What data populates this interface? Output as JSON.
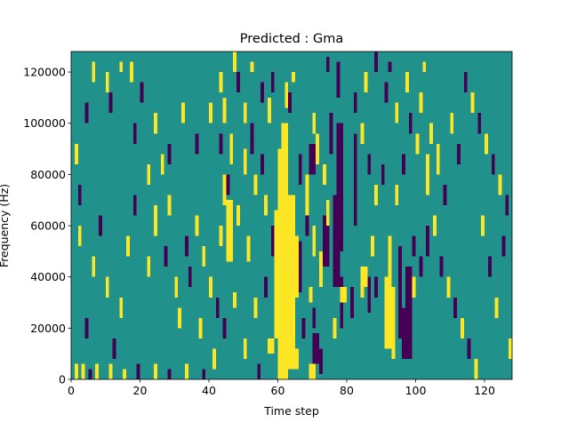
{
  "chart_data": {
    "type": "heatmap",
    "title": "Predicted : Gma",
    "xlabel": "Time step",
    "ylabel": "Frequency (Hz)",
    "xlim": [
      0,
      128
    ],
    "ylim": [
      0,
      128000
    ],
    "xticks": [
      0,
      20,
      40,
      60,
      80,
      100,
      120
    ],
    "yticks": [
      0,
      20000,
      40000,
      60000,
      80000,
      100000,
      120000
    ],
    "n_time_steps": 128,
    "n_freq_bins": 64,
    "freq_bin_hz": 2000,
    "levels": [
      -1,
      0,
      1
    ],
    "colors": {
      "-1": "#440154",
      "0": "#21918c",
      "1": "#fde725"
    },
    "cell_format": "[time_step_start, time_step_end_exclusive, freq_bin_start, freq_bin_end_exclusive, level] — time steps are on the x axis; bin k covers k*2000 to (k+1)*2000 Hz on the y axis; all unlisted cells are level 0",
    "cells": [
      [
        60,
        63,
        0,
        45,
        1
      ],
      [
        63,
        65,
        2,
        36,
        1
      ],
      [
        59,
        60,
        8,
        33,
        1
      ],
      [
        64,
        66,
        16,
        28,
        1
      ],
      [
        61,
        63,
        45,
        50,
        1
      ],
      [
        57,
        59,
        5,
        8,
        1
      ],
      [
        65,
        66,
        2,
        6,
        1
      ],
      [
        79,
        81,
        25,
        55,
        0
      ],
      [
        78,
        80,
        15,
        18,
        1
      ],
      [
        77,
        79,
        25,
        50,
        -1
      ],
      [
        76,
        78,
        18,
        36,
        -1
      ],
      [
        73,
        75,
        22,
        32,
        -1
      ],
      [
        78,
        79,
        10,
        20,
        -1
      ],
      [
        82,
        83,
        30,
        48,
        -1
      ],
      [
        77,
        78,
        55,
        62,
        -1
      ],
      [
        75,
        76,
        44,
        52,
        -1
      ],
      [
        97,
        99,
        4,
        22,
        -1
      ],
      [
        96,
        98,
        4,
        14,
        -1
      ],
      [
        95,
        96,
        8,
        26,
        -1
      ],
      [
        91,
        93,
        6,
        20,
        1
      ],
      [
        93,
        94,
        4,
        18,
        1
      ],
      [
        92,
        93,
        12,
        28,
        1
      ],
      [
        86,
        87,
        13,
        20,
        -1
      ],
      [
        84,
        85,
        16,
        20,
        1
      ],
      [
        99,
        100,
        24,
        28,
        -1
      ],
      [
        101,
        102,
        20,
        24,
        -1
      ],
      [
        99,
        100,
        16,
        20,
        1
      ],
      [
        66,
        67,
        17,
        27,
        -1
      ],
      [
        70,
        72,
        3,
        9,
        -1
      ],
      [
        72,
        73,
        1,
        6,
        -1
      ],
      [
        69,
        71,
        0,
        3,
        1
      ],
      [
        70,
        71,
        10,
        14,
        -1
      ],
      [
        67,
        68,
        8,
        12,
        -1
      ],
      [
        72,
        73,
        18,
        25,
        1
      ],
      [
        69,
        70,
        15,
        18,
        1
      ],
      [
        70,
        71,
        24,
        30,
        1
      ],
      [
        68,
        69,
        32,
        40,
        1
      ],
      [
        66,
        67,
        38,
        44,
        -1
      ],
      [
        68,
        69,
        28,
        35,
        -1
      ],
      [
        69,
        71,
        40,
        46,
        -1
      ],
      [
        71,
        72,
        42,
        48,
        1
      ],
      [
        70,
        71,
        48,
        52,
        1
      ],
      [
        73,
        74,
        38,
        42,
        1
      ],
      [
        74,
        75,
        30,
        35,
        1
      ],
      [
        76,
        77,
        8,
        12,
        1
      ],
      [
        84,
        86,
        18,
        22,
        1
      ],
      [
        87,
        88,
        24,
        28,
        1
      ],
      [
        88,
        89,
        16,
        20,
        -1
      ],
      [
        45,
        47,
        23,
        35,
        1
      ],
      [
        46,
        47,
        42,
        48,
        1
      ],
      [
        44,
        45,
        34,
        40,
        1
      ],
      [
        43,
        44,
        26,
        30,
        1
      ],
      [
        45,
        46,
        36,
        40,
        -1
      ],
      [
        47,
        48,
        14,
        17,
        1
      ],
      [
        44,
        45,
        50,
        55,
        1
      ],
      [
        48,
        49,
        30,
        34,
        1
      ],
      [
        51,
        52,
        23,
        28,
        1
      ],
      [
        53,
        54,
        36,
        40,
        1
      ],
      [
        50,
        51,
        40,
        45,
        1
      ],
      [
        52,
        53,
        44,
        50,
        -1
      ],
      [
        56,
        57,
        32,
        36,
        1
      ],
      [
        58,
        59,
        24,
        30,
        -1
      ],
      [
        55,
        56,
        40,
        44,
        -1
      ],
      [
        57,
        58,
        50,
        55,
        1
      ],
      [
        50,
        51,
        50,
        54,
        1
      ],
      [
        43,
        44,
        56,
        60,
        1
      ],
      [
        47,
        48,
        60,
        64,
        1
      ],
      [
        40,
        41,
        16,
        20,
        1
      ],
      [
        38,
        39,
        22,
        26,
        1
      ],
      [
        42,
        43,
        12,
        16,
        -1
      ],
      [
        36,
        37,
        28,
        32,
        1
      ],
      [
        33,
        34,
        24,
        28,
        -1
      ],
      [
        30,
        31,
        16,
        20,
        1
      ],
      [
        28,
        29,
        32,
        36,
        1
      ],
      [
        26,
        27,
        40,
        44,
        1
      ],
      [
        24,
        25,
        28,
        34,
        1
      ],
      [
        22,
        23,
        20,
        24,
        1
      ],
      [
        18,
        19,
        32,
        36,
        -1
      ],
      [
        16,
        17,
        24,
        28,
        1
      ],
      [
        14,
        15,
        12,
        16,
        1
      ],
      [
        12,
        13,
        4,
        8,
        -1
      ],
      [
        10,
        11,
        16,
        20,
        1
      ],
      [
        8,
        9,
        28,
        32,
        -1
      ],
      [
        6,
        7,
        20,
        24,
        1
      ],
      [
        4,
        5,
        8,
        12,
        -1
      ],
      [
        2,
        3,
        26,
        30,
        1
      ],
      [
        1,
        2,
        0,
        3,
        1
      ],
      [
        3,
        4,
        0,
        3,
        1
      ],
      [
        5,
        6,
        0,
        2,
        -1
      ],
      [
        7,
        8,
        0,
        3,
        1
      ],
      [
        11,
        12,
        0,
        3,
        1
      ],
      [
        15,
        16,
        0,
        2,
        1
      ],
      [
        19,
        20,
        0,
        3,
        -1
      ],
      [
        24,
        25,
        0,
        3,
        1
      ],
      [
        28,
        29,
        0,
        2,
        -1
      ],
      [
        33,
        34,
        0,
        3,
        1
      ],
      [
        38,
        39,
        0,
        2,
        -1
      ],
      [
        41,
        42,
        2,
        6,
        1
      ],
      [
        54,
        55,
        0,
        3,
        -1
      ],
      [
        64,
        65,
        58,
        60,
        1
      ],
      [
        63,
        64,
        52,
        56,
        -1
      ],
      [
        74,
        75,
        60,
        63,
        -1
      ],
      [
        62,
        63,
        53,
        58,
        1
      ],
      [
        6,
        7,
        58,
        62,
        1
      ],
      [
        10,
        11,
        56,
        60,
        1
      ],
      [
        14,
        15,
        60,
        62,
        1
      ],
      [
        17,
        18,
        58,
        62,
        1
      ],
      [
        20,
        21,
        54,
        58,
        -1
      ],
      [
        24,
        25,
        48,
        52,
        1
      ],
      [
        28,
        29,
        42,
        46,
        -1
      ],
      [
        32,
        33,
        50,
        54,
        1
      ],
      [
        36,
        37,
        44,
        48,
        -1
      ],
      [
        40,
        41,
        50,
        54,
        1
      ],
      [
        43,
        44,
        44,
        48,
        -1
      ],
      [
        48,
        49,
        56,
        60,
        -1
      ],
      [
        52,
        53,
        60,
        62,
        1
      ],
      [
        55,
        56,
        54,
        58,
        -1
      ],
      [
        58,
        59,
        56,
        60,
        -1
      ],
      [
        11,
        12,
        52,
        56,
        -1
      ],
      [
        4,
        5,
        50,
        54,
        -1
      ],
      [
        1,
        2,
        42,
        46,
        1
      ],
      [
        2,
        3,
        34,
        38,
        -1
      ],
      [
        18,
        19,
        46,
        50,
        -1
      ],
      [
        22,
        23,
        38,
        42,
        1
      ],
      [
        27,
        28,
        22,
        26,
        -1
      ],
      [
        31,
        32,
        10,
        14,
        1
      ],
      [
        34,
        35,
        18,
        22,
        -1
      ],
      [
        37,
        38,
        8,
        12,
        1
      ],
      [
        44,
        45,
        8,
        12,
        -1
      ],
      [
        50,
        51,
        4,
        8,
        1
      ],
      [
        53,
        54,
        12,
        16,
        1
      ],
      [
        56,
        57,
        16,
        20,
        -1
      ],
      [
        82,
        83,
        52,
        56,
        -1
      ],
      [
        85,
        86,
        56,
        60,
        1
      ],
      [
        88,
        89,
        60,
        64,
        -1
      ],
      [
        91,
        92,
        54,
        58,
        -1
      ],
      [
        94,
        95,
        50,
        54,
        1
      ],
      [
        97,
        98,
        56,
        60,
        1
      ],
      [
        101,
        102,
        52,
        56,
        1
      ],
      [
        104,
        105,
        46,
        50,
        1
      ],
      [
        103,
        104,
        36,
        44,
        1
      ],
      [
        106,
        107,
        40,
        46,
        1
      ],
      [
        108,
        109,
        34,
        38,
        -1
      ],
      [
        110,
        111,
        48,
        52,
        1
      ],
      [
        112,
        113,
        42,
        46,
        -1
      ],
      [
        114,
        115,
        56,
        60,
        -1
      ],
      [
        116,
        117,
        52,
        56,
        1
      ],
      [
        118,
        119,
        48,
        52,
        -1
      ],
      [
        120,
        121,
        44,
        48,
        1
      ],
      [
        122,
        123,
        40,
        44,
        -1
      ],
      [
        124,
        125,
        36,
        40,
        1
      ],
      [
        126,
        127,
        32,
        36,
        -1
      ],
      [
        103,
        104,
        24,
        30,
        -1
      ],
      [
        105,
        106,
        28,
        32,
        1
      ],
      [
        107,
        108,
        20,
        24,
        -1
      ],
      [
        109,
        110,
        16,
        20,
        1
      ],
      [
        111,
        112,
        12,
        16,
        -1
      ],
      [
        113,
        114,
        8,
        12,
        1
      ],
      [
        115,
        116,
        4,
        8,
        -1
      ],
      [
        117,
        118,
        0,
        4,
        1
      ],
      [
        119,
        120,
        28,
        32,
        1
      ],
      [
        121,
        122,
        20,
        24,
        -1
      ],
      [
        123,
        124,
        12,
        16,
        1
      ],
      [
        125,
        126,
        24,
        28,
        -1
      ],
      [
        127,
        128,
        4,
        8,
        1
      ],
      [
        90,
        91,
        38,
        42,
        -1
      ],
      [
        94,
        95,
        34,
        38,
        1
      ],
      [
        96,
        97,
        40,
        44,
        -1
      ],
      [
        100,
        101,
        44,
        48,
        1
      ],
      [
        102,
        103,
        60,
        62,
        1
      ],
      [
        98,
        99,
        48,
        52,
        -1
      ],
      [
        92,
        93,
        60,
        62,
        -1
      ],
      [
        84,
        85,
        46,
        50,
        1
      ],
      [
        86,
        87,
        40,
        44,
        -1
      ],
      [
        88,
        89,
        34,
        38,
        1
      ],
      [
        81,
        82,
        12,
        18,
        -1
      ]
    ]
  }
}
